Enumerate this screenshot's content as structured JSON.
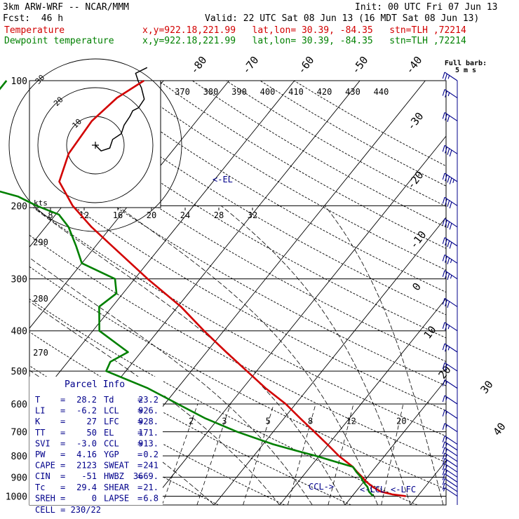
{
  "header": {
    "model": "3km ARW-WRF -- NCAR/MMM",
    "init": "Init: 00 UTC Fri 07 Jun 13",
    "fcst": "Fcst:  46 h",
    "valid": "Valid: 22 UTC Sat 08 Jun 13 (16 MDT Sat 08 Jun 13)",
    "temp_label": "Temperature",
    "temp_loc": "x,y=922.18,221.99   lat,lon= 30.39, -84.35   stn=TLH ,72214",
    "dew_label": "Dewpoint temperature",
    "dew_loc": "x,y=922.18,221.99   lat,lon= 30.39, -84.35   stn=TLH ,72214"
  },
  "legend_barb": {
    "line1": "Full barb:",
    "line2": "5 m s"
  },
  "colors": {
    "temperature": "#d20000",
    "dewpoint": "#008000",
    "grid": "#000000",
    "info": "#00008b"
  },
  "chart_data": {
    "type": "line",
    "chart_kind": "Skew-T log-P sounding",
    "pressure_ticks": [
      "100",
      "200",
      "300",
      "400",
      "500",
      "600",
      "700",
      "800",
      "900",
      "1000"
    ],
    "pressure_levels": [
      100,
      200,
      300,
      400,
      500,
      600,
      700,
      800,
      900,
      1000
    ],
    "isotherm_labels": [
      "-80",
      "-70",
      "-60",
      "-50",
      "-40",
      "-30",
      "-20",
      "-10",
      "0",
      "10",
      "20",
      "30",
      "40"
    ],
    "isotherm_values": [
      -80,
      -70,
      -60,
      -50,
      -40,
      -30,
      -20,
      -10,
      0,
      10,
      20,
      30,
      40
    ],
    "theta_top_labels": [
      "370",
      "380",
      "390",
      "400",
      "410",
      "420",
      "430",
      "440"
    ],
    "theta_left_labels": [
      {
        "text": "290",
        "p": 245
      },
      {
        "text": "280",
        "p": 335
      },
      {
        "text": "270",
        "p": 452
      }
    ],
    "mixing_ratio_labels": [
      "2",
      "3",
      "5",
      "8",
      "12",
      "20"
    ],
    "mixing_ratio_values": [
      2,
      3,
      5,
      8,
      12,
      20
    ],
    "annotations": [
      "<-EL",
      "CCL->",
      "<-LCL",
      "<-LFC"
    ],
    "series": [
      {
        "name": "Temperature",
        "p": [
          1000,
          990,
          975,
          950,
          925,
          900,
          875,
          850,
          800,
          750,
          700,
          650,
          600,
          550,
          500,
          450,
          400,
          350,
          300,
          250,
          225,
          200,
          175,
          150,
          125,
          110,
          100
        ],
        "t": [
          28.2,
          25.9,
          23.8,
          22.0,
          20.5,
          19.2,
          17.8,
          16.5,
          13.0,
          9.8,
          6.3,
          2.5,
          -1.5,
          -6.5,
          -11.5,
          -17.0,
          -23.0,
          -29.5,
          -38.0,
          -47.5,
          -53.0,
          -58.5,
          -63.5,
          -65.5,
          -66.0,
          -65.0,
          -63.0
        ]
      },
      {
        "name": "Dewpoint temperature",
        "p": [
          1000,
          975,
          950,
          925,
          900,
          875,
          850,
          825,
          800,
          775,
          750,
          700,
          650,
          600,
          550,
          500,
          475,
          450,
          400,
          350,
          325,
          300,
          275,
          250,
          225,
          210,
          200,
          190,
          175,
          165,
          150,
          140,
          132,
          125,
          118,
          110,
          100
        ],
        "t": [
          23.2,
          22.0,
          21.2,
          20.0,
          19.0,
          17.7,
          16.5,
          13.0,
          9.5,
          5.5,
          1.5,
          -5.5,
          -12.0,
          -18.0,
          -24.5,
          -33.0,
          -33.5,
          -32.0,
          -39.0,
          -42.0,
          -41.0,
          -43.0,
          -50.0,
          -53.0,
          -56.5,
          -59.5,
          -64.0,
          -68.0,
          -78.0,
          -87.0,
          -95.0,
          -95.0,
          -94.0,
          -90.0,
          -86.0,
          -84.0,
          -84.0
        ]
      }
    ],
    "hodograph": {
      "unit_label": "kts",
      "ring_labels": [
        "10",
        "20",
        "30"
      ],
      "ring_values": [
        10,
        20,
        30
      ],
      "speed_ticks": [
        "8",
        "12",
        "16",
        "20",
        "24",
        "28",
        "32"
      ],
      "u": [
        0,
        2,
        5,
        6,
        9,
        10,
        12,
        13,
        15,
        17,
        16,
        15,
        14,
        18
      ],
      "v": [
        0,
        -2,
        -1,
        2,
        4,
        7,
        10,
        12,
        13,
        16,
        20,
        22,
        25,
        27
      ]
    },
    "wind_barbs": {
      "p": [
        1000,
        975,
        950,
        925,
        900,
        875,
        850,
        825,
        800,
        775,
        750,
        700,
        650,
        600,
        550,
        500,
        450,
        400,
        350,
        300,
        275,
        250,
        225,
        200,
        175,
        150,
        125,
        110,
        100
      ],
      "spd": [
        5,
        10,
        10,
        12,
        15,
        15,
        15,
        15,
        15,
        15,
        15,
        15,
        15,
        15,
        15,
        20,
        25,
        25,
        30,
        35,
        35,
        40,
        40,
        40,
        45,
        40,
        30,
        25,
        25
      ]
    },
    "parcel_info": {
      "title": "Parcel Info",
      "rows": [
        [
          "T",
          "28.2",
          "Td",
          "23.2"
        ],
        [
          "LI",
          "-6.2",
          "LCL",
          "926."
        ],
        [
          "K",
          "27",
          "LFC",
          "928."
        ],
        [
          "TT",
          "50",
          "EL",
          "171."
        ],
        [
          "SVI",
          "-3.0",
          "CCL",
          "913."
        ],
        [
          "PW",
          "4.16",
          "YGP",
          "0.2"
        ],
        [
          "CAPE",
          "2123",
          "SWEAT",
          "241"
        ],
        [
          "CIN",
          "-51",
          "HWBZ",
          "3669."
        ],
        [
          "Tc",
          "29.4",
          "SHEAR",
          "21."
        ],
        [
          "SREH",
          "0",
          "LAPSE",
          "6.8"
        ]
      ],
      "cell": "CELL = 230/22"
    }
  }
}
